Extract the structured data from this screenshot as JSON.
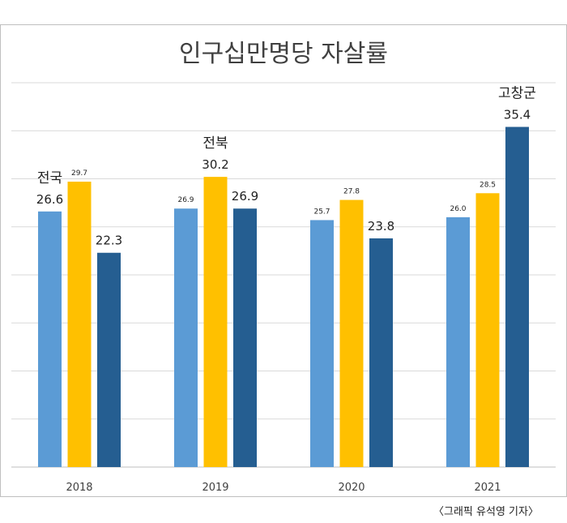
{
  "chart_data": {
    "type": "bar",
    "title": "인구십만명당 자살률",
    "categories": [
      "2018",
      "2019",
      "2020",
      "2021"
    ],
    "series": [
      {
        "key": "national",
        "values": [
          26.6,
          26.9,
          25.7,
          26.0
        ],
        "color": "#5B9BD5"
      },
      {
        "key": "jeonbuk",
        "values": [
          29.7,
          30.2,
          27.8,
          28.5
        ],
        "color": "#FFC000"
      },
      {
        "key": "gochang",
        "values": [
          22.3,
          26.9,
          23.8,
          35.4
        ],
        "color": "#255E91"
      }
    ],
    "data_labels": [
      [
        "26.6",
        "29.7",
        "22.3"
      ],
      [
        "26.9",
        "30.2",
        "26.9"
      ],
      [
        "25.7",
        "27.8",
        "23.8"
      ],
      [
        "26.0",
        "28.5",
        "35.4"
      ]
    ],
    "annotations": [
      "전국",
      "전북",
      "고창군"
    ],
    "ylim": [
      0,
      40
    ],
    "grid": true,
    "legend": "none",
    "xlabel": "",
    "ylabel": ""
  },
  "credit": "〈그래픽 유석영 기자〉",
  "colors": {
    "border": "#bfbfbf",
    "grid": "#d9d9d9",
    "text": "#404040"
  }
}
